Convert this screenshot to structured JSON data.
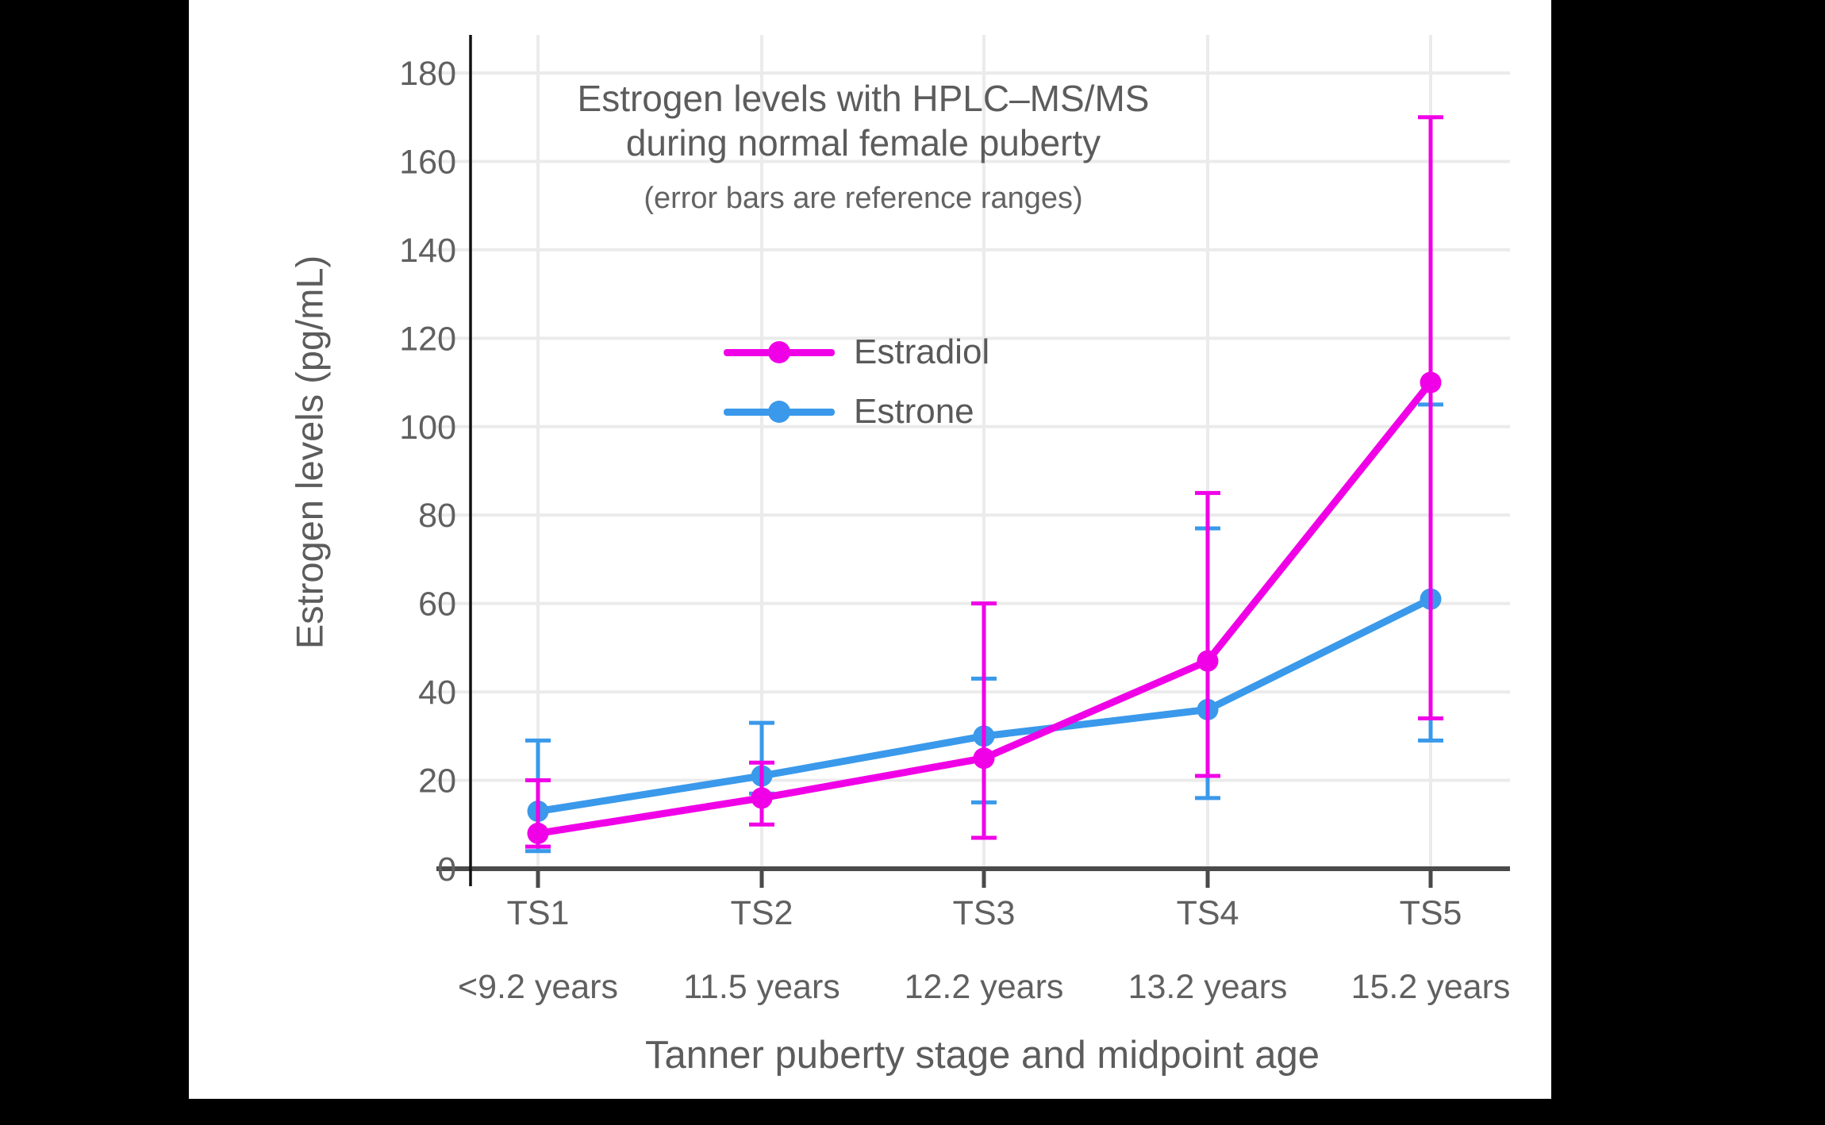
{
  "window": {
    "background": "#000000",
    "panel_background": "#ffffff"
  },
  "chart_data": {
    "type": "line",
    "title_lines": [
      "Estrogen levels with HPLC–MS/MS",
      "during normal female puberty"
    ],
    "subtitle": "(error bars are reference ranges)",
    "xlabel": "Tanner puberty stage and midpoint age",
    "ylabel": "Estrogen levels (pg/mL)",
    "x_categories": [
      "TS1",
      "TS2",
      "TS3",
      "TS4",
      "TS5"
    ],
    "x_sublabels": [
      "<9.2 years",
      "11.5 years",
      "12.2 years",
      "13.2 years",
      "15.2 years"
    ],
    "ylim": [
      0,
      180
    ],
    "ytick_step": 20,
    "grid": true,
    "legend_position": "upper-center-inside",
    "series": [
      {
        "name": "Estradiol",
        "color": "#F000E6",
        "marker": "circle",
        "values": [
          8,
          16,
          25,
          47,
          110
        ],
        "error_low": [
          5,
          10,
          7,
          21,
          34
        ],
        "error_high": [
          20,
          24,
          60,
          85,
          170
        ]
      },
      {
        "name": "Estrone",
        "color": "#3A99EA",
        "marker": "circle",
        "values": [
          13,
          21,
          30,
          36,
          61
        ],
        "error_low": [
          4,
          17,
          15,
          16,
          29
        ],
        "error_high": [
          29,
          33,
          43,
          77,
          105
        ]
      }
    ],
    "colors": {
      "grid": "#EBEBEB",
      "x_axis": "#4A4A4A",
      "y_axis": "#111111",
      "tick_text": "#606060"
    }
  }
}
